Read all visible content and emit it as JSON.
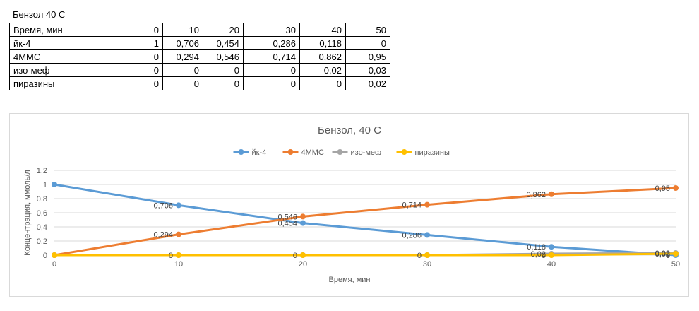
{
  "sheet": {
    "title": "Бензол 40 С",
    "table": {
      "header_label": "Время, мин",
      "times": [
        "0",
        "10",
        "20",
        "30",
        "40",
        "50"
      ],
      "rows": [
        {
          "label": "йк-4",
          "values": [
            "1",
            "0,706",
            "0,454",
            "0,286",
            "0,118",
            "0"
          ]
        },
        {
          "label": "4ММС",
          "values": [
            "0",
            "0,294",
            "0,546",
            "0,714",
            "0,862",
            "0,95"
          ]
        },
        {
          "label": "изо-меф",
          "values": [
            "0",
            "0",
            "0",
            "0",
            "0,02",
            "0,03"
          ]
        },
        {
          "label": "пиразины",
          "values": [
            "0",
            "0",
            "0",
            "0",
            "0",
            "0,02"
          ]
        }
      ]
    }
  },
  "chart_data": {
    "type": "line",
    "title": "Бензол, 40 С",
    "xlabel": "Время, мин",
    "ylabel": "Концентрация, ммоль/л",
    "x": [
      0,
      10,
      20,
      30,
      40,
      50
    ],
    "xlim": [
      0,
      50
    ],
    "ylim": [
      0,
      1.2
    ],
    "x_ticks": [
      "0",
      "10",
      "20",
      "30",
      "40",
      "50"
    ],
    "y_ticks": [
      "0",
      "0,2",
      "0,4",
      "0,6",
      "0,8",
      "1",
      "1,2"
    ],
    "grid": true,
    "legend_position": "top",
    "series": [
      {
        "name": "йк-4",
        "color": "#5b9bd5",
        "values": [
          1,
          0.706,
          0.454,
          0.286,
          0.118,
          0
        ],
        "labels": [
          "",
          "0,706",
          "0,454",
          "0,286",
          "0,118",
          "0"
        ]
      },
      {
        "name": "4ММС",
        "color": "#ed7d31",
        "values": [
          0,
          0.294,
          0.546,
          0.714,
          0.862,
          0.95
        ],
        "labels": [
          "",
          "0,294",
          "0,546",
          "0,714",
          "0,862",
          "0,95"
        ]
      },
      {
        "name": "изо-меф",
        "color": "#a5a5a5",
        "values": [
          0,
          0,
          0,
          0,
          0.02,
          0.03
        ],
        "labels": [
          "",
          "",
          "",
          "",
          "0,02",
          "0,03"
        ]
      },
      {
        "name": "пиразины",
        "color": "#ffc000",
        "values": [
          0,
          0,
          0,
          0,
          0,
          0.02
        ],
        "labels": [
          "",
          "0",
          "0",
          "0",
          "0",
          "0,02"
        ]
      }
    ]
  }
}
